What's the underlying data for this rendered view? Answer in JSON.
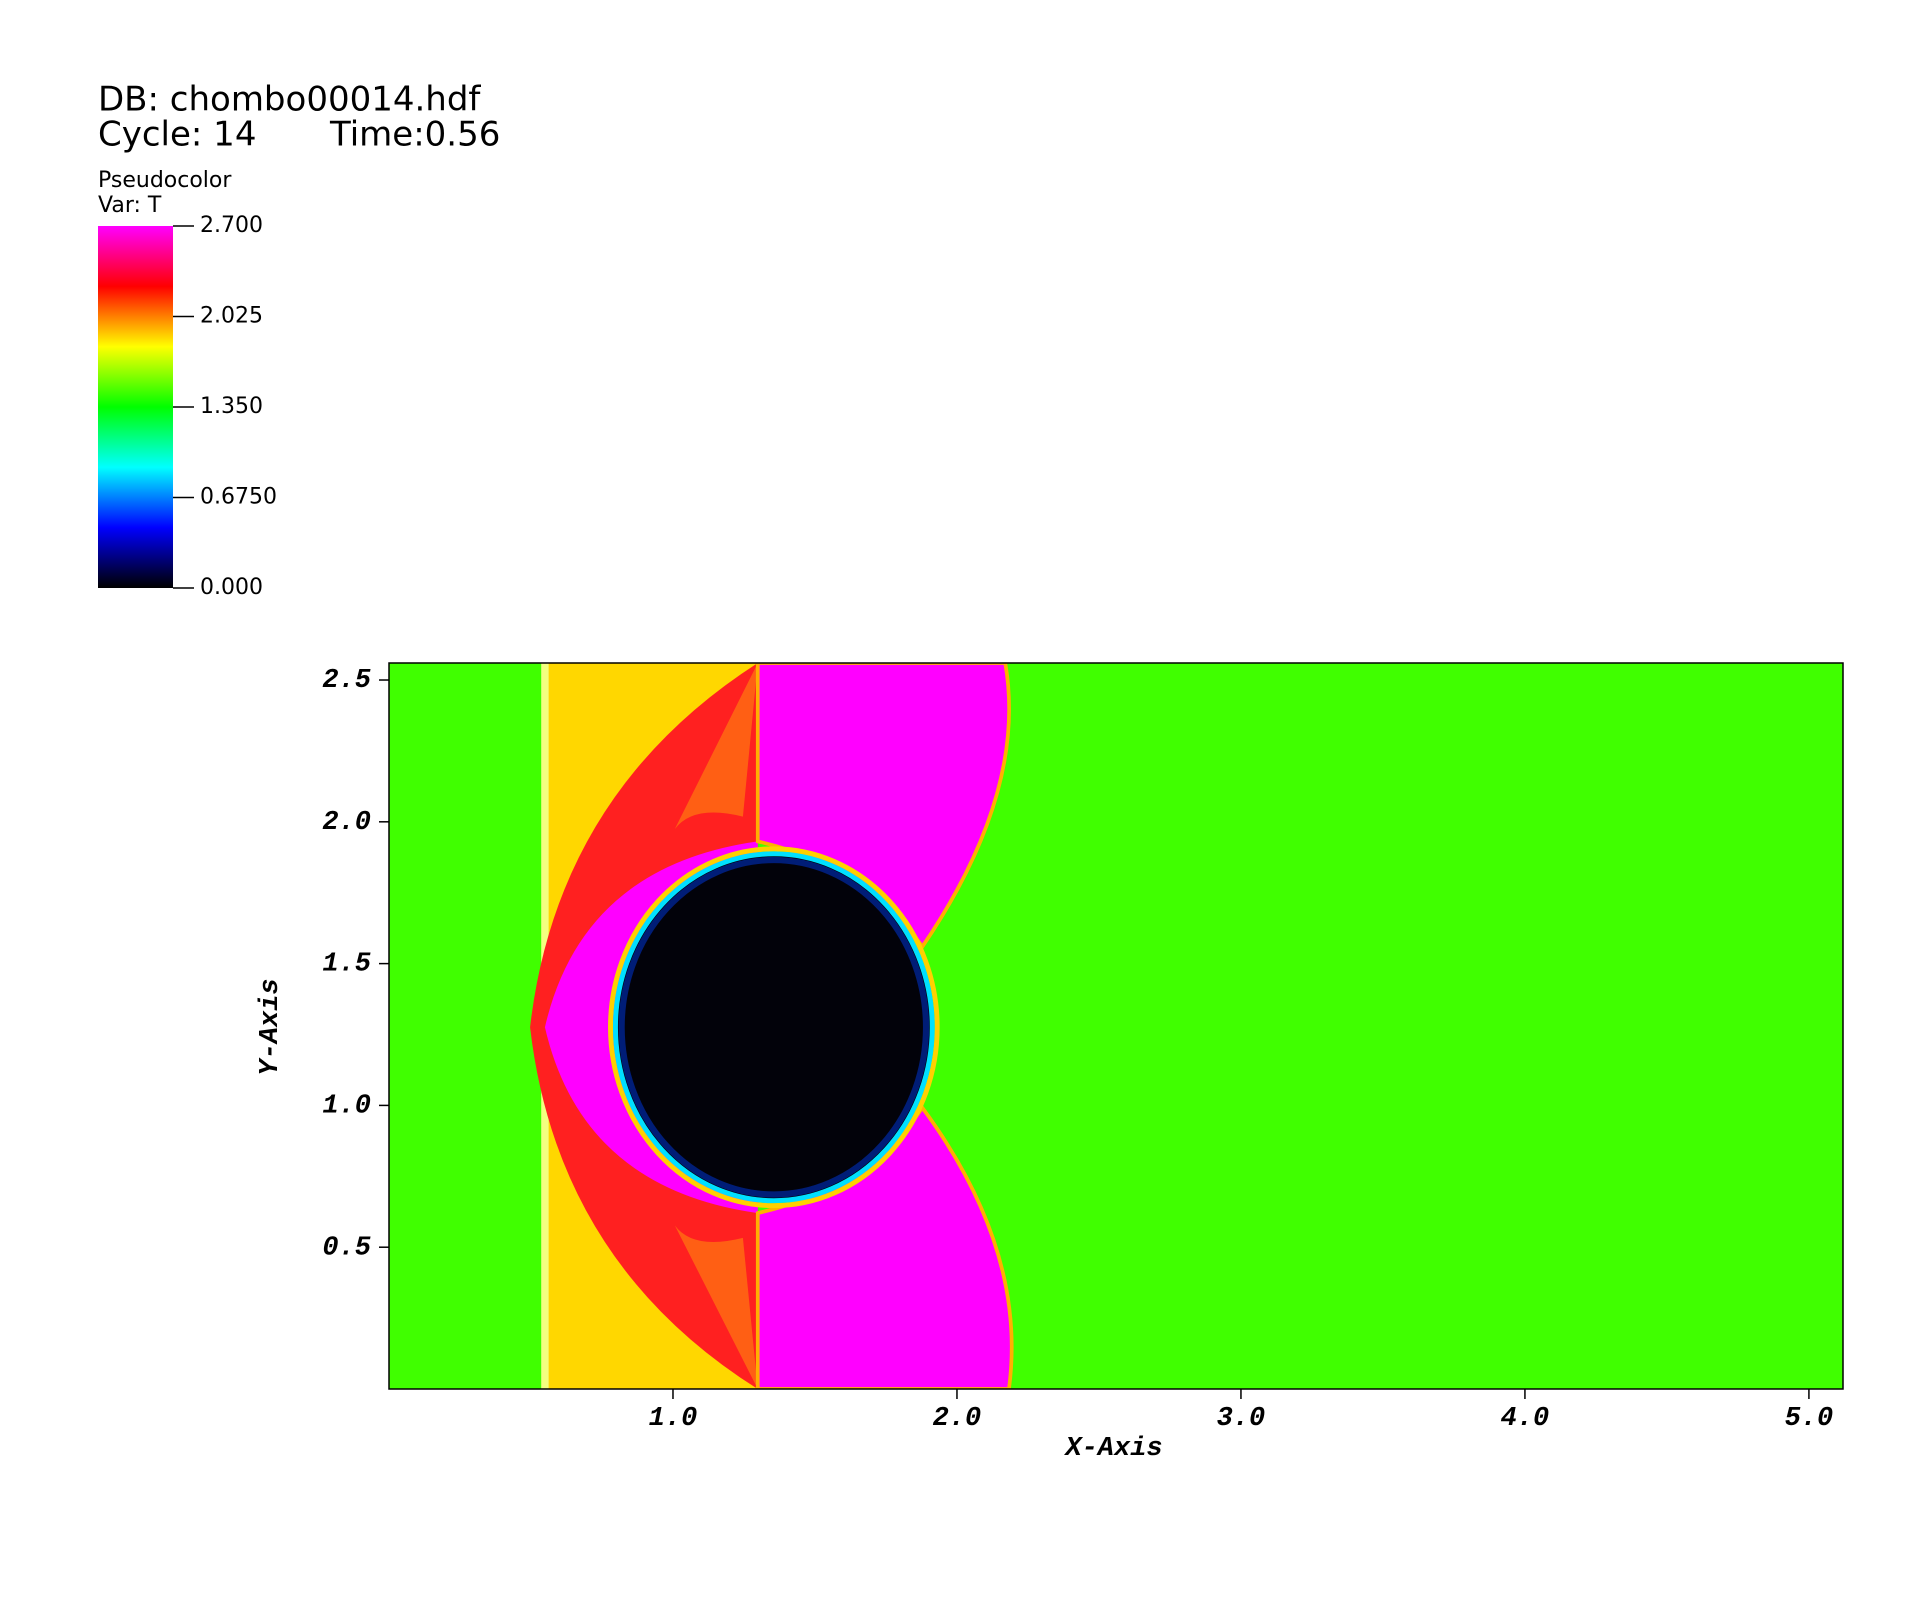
{
  "chart_data": {
    "type": "pseudocolor",
    "db": "DB: chombo00014.hdf",
    "cycle": "Cycle: 14",
    "time": "Time:0.56",
    "colorbar": {
      "plot": "Pseudocolor",
      "var": "Var: T",
      "range": [
        0,
        2.7
      ],
      "colors": [
        "#000000",
        "#0000ff",
        "#00ffff",
        "#00ff00",
        "#ffff00",
        "#ff0000",
        "#ff00ff"
      ],
      "ticks": [
        {
          "value": 2.7,
          "label": "2.700"
        },
        {
          "value": 2.025,
          "label": "2.025"
        },
        {
          "value": 1.35,
          "label": "1.350"
        },
        {
          "value": 0.675,
          "label": "0.6750"
        },
        {
          "value": 0,
          "label": "0.000"
        }
      ]
    },
    "xlabel": "X-Axis",
    "ylabel": "Y-Axis",
    "xlim": [
      0,
      5.12
    ],
    "ylim": [
      0,
      2.56
    ],
    "xticks": [
      {
        "value": 1,
        "label": "1.0"
      },
      {
        "value": 2,
        "label": "2.0"
      },
      {
        "value": 3,
        "label": "3.0"
      },
      {
        "value": 4,
        "label": "4.0"
      },
      {
        "value": 5,
        "label": "5.0"
      }
    ],
    "yticks": [
      {
        "value": 0.5,
        "label": "0.5"
      },
      {
        "value": 1,
        "label": "1.0"
      },
      {
        "value": 1.5,
        "label": "1.5"
      },
      {
        "value": 2,
        "label": "2.0"
      },
      {
        "value": 2.5,
        "label": "2.5"
      }
    ]
  }
}
